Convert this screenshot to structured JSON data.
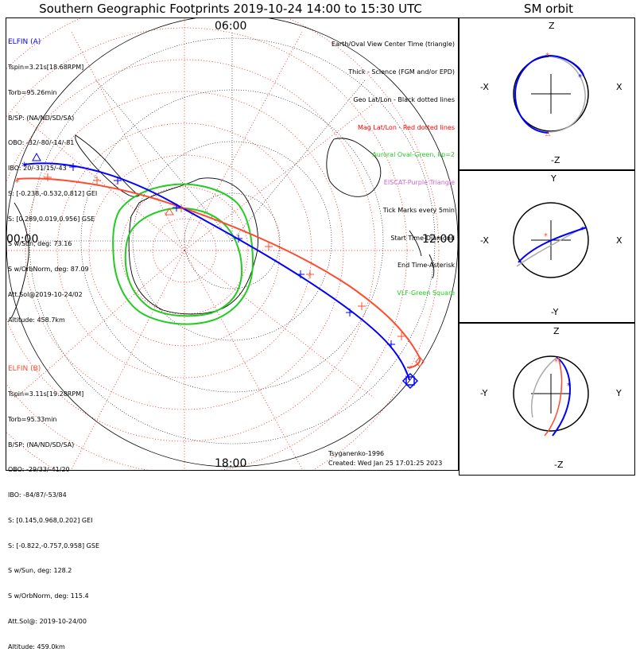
{
  "title": "Southern Geographic Footprints 2019-10-24 14:00 to 15:30 UTC",
  "sm_title": "SM orbit",
  "clock_labels": {
    "top": "06:00",
    "left": "00:00",
    "right": "12:00",
    "bottom": "18:00"
  },
  "elfin_a": {
    "name": "ELFIN (A)",
    "lines": [
      "Tspin=3.21s[18.68RPM]",
      "Torb=95.26min",
      "B/SP: (NA/ND/SD/SA)",
      "OBO: -32/-80/-14/-81",
      "IBO: 20/-31/15/-43",
      "S: [-0.238,-0.532,0.812] GEI",
      "S: [0.289,0.019,0.956] GSE",
      "S w/Sun, deg: 73.16",
      "S w/OrbNorm, deg: 87.09",
      "Att.Sol@2019-10-24/02",
      "Altitude: 458.7km"
    ],
    "color": "#0000ff"
  },
  "elfin_b": {
    "name": "ELFIN (B)",
    "lines": [
      "Tspin=3.11s[19.28RPM]",
      "Torb=95.33min",
      "B/SP: (NA/ND/SD/SA)",
      "OBO: -29/33/-41/20",
      "IBO: -84/87/-53/84",
      "S: [0.145,0.968,0.202] GEI",
      "S: [-0.822,-0.757,0.958] GSE",
      "S w/Sun, deg: 128.2",
      "S w/OrbNorm, deg: 115.4",
      "Att.Sol@: 2019-10-24/00",
      "Altitude: 459.0km"
    ],
    "color": "#ff4c2e"
  },
  "legend": [
    {
      "text": "Earth/Oval View Center Time (triangle)",
      "color": "#000000"
    },
    {
      "text": "Thick - Science (FGM and/or EPD)",
      "color": "#000000"
    },
    {
      "text": "Geo Lat/Lon - Black dotted lines",
      "color": "#000000"
    },
    {
      "text": "Mag Lat/Lon - Red dotted lines",
      "color": "#ff0000"
    },
    {
      "text": "Auroral Oval-Green, kp=2",
      "color": "#22cc22"
    },
    {
      "text": "EISCAT-Purple Triangle",
      "color": "#cc66cc"
    },
    {
      "text": "Tick Marks every 5min",
      "color": "#000000"
    },
    {
      "text": "Start Time-Diamond",
      "color": "#000000"
    },
    {
      "text": "End Time-Asterisk",
      "color": "#000000"
    },
    {
      "text": "VLF-Green Square",
      "color": "#22cc22"
    }
  ],
  "signature": {
    "author": "Tsyganenko-1996",
    "created": "Created: Wed Jan 25 17:01:25 2023"
  },
  "sm_panels": [
    {
      "top": "Z",
      "bottom": "-Z",
      "left": "-X",
      "right": "X"
    },
    {
      "top": "Y",
      "bottom": "-Y",
      "left": "-X",
      "right": "X"
    },
    {
      "top": "Z",
      "bottom": "-Z",
      "left": "-Y",
      "right": "Y"
    }
  ],
  "colors": {
    "orbit_a": "#0000ff",
    "orbit_b": "#ff4c2e",
    "oval": "#22cc22",
    "mag_grid": "#ff0000",
    "geo_grid": "#000000",
    "orbit_other": "#aaaaaa"
  }
}
